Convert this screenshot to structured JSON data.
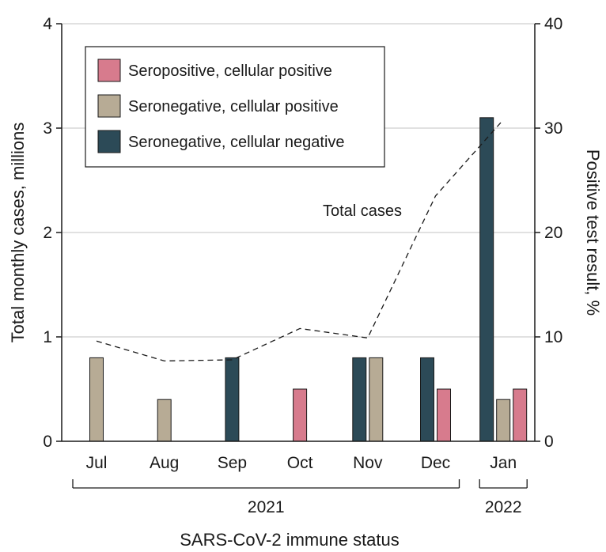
{
  "chart_data": {
    "type": "bar",
    "categories": [
      "Jul",
      "Aug",
      "Sep",
      "Oct",
      "Nov",
      "Dec",
      "Jan"
    ],
    "series": [
      {
        "name": "Seropositive, cellular positive",
        "color": "#d77b8d",
        "values": [
          0,
          0,
          0,
          0.5,
          0,
          0.5,
          0.5
        ]
      },
      {
        "name": "Seronegative, cellular positive",
        "color": "#b7ab95",
        "values": [
          0.8,
          0.4,
          0,
          0,
          0.8,
          0,
          0.4
        ]
      },
      {
        "name": "Seronegative, cellular negative",
        "color": "#2c4a57",
        "values": [
          0,
          0,
          0.8,
          0,
          0.8,
          0.8,
          3.1
        ]
      }
    ],
    "line": {
      "label": "Total cases",
      "axis": "right",
      "x": [
        "Jul",
        "Aug",
        "Sep",
        "Oct",
        "Nov",
        "Dec",
        "Jan"
      ],
      "values": [
        9.6,
        7.7,
        7.8,
        10.8,
        9.9,
        23.5,
        30.8
      ]
    },
    "ylabel": "Total monthly cases, millions",
    "ylim": [
      0,
      4
    ],
    "yticks": [
      "0",
      "1",
      "2",
      "3",
      "4"
    ],
    "y2label": "Positive test result, %",
    "y2lim": [
      0,
      40
    ],
    "y2ticks": [
      "0",
      "10",
      "20",
      "30",
      "40"
    ],
    "xlabel": "SARS-CoV-2 immune status",
    "year_groups": [
      {
        "label": "2021",
        "from": "Jul",
        "to": "Dec"
      },
      {
        "label": "2022",
        "from": "Jan",
        "to": "Jan"
      }
    ],
    "grid": true,
    "legend_position": "top-left"
  }
}
